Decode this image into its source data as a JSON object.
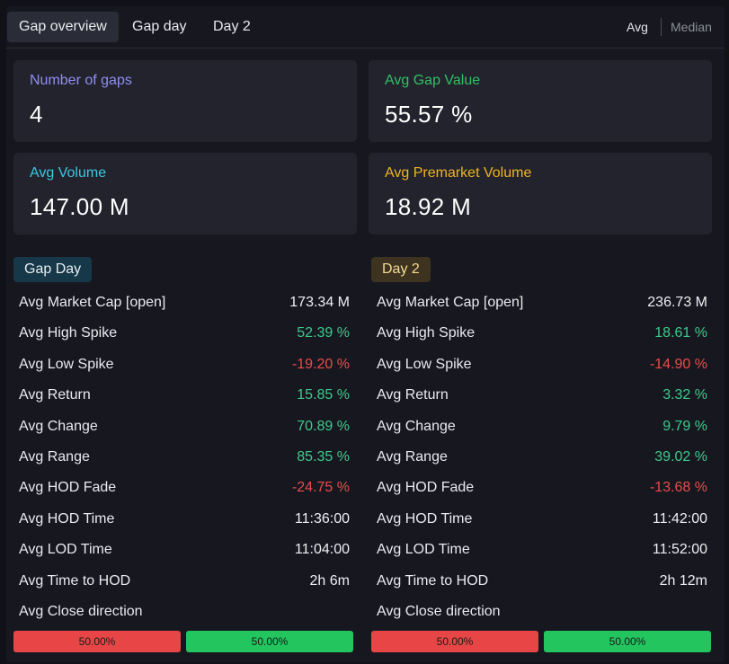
{
  "tabs": [
    {
      "label": "Gap overview",
      "active": true
    },
    {
      "label": "Gap day",
      "active": false
    },
    {
      "label": "Day 2",
      "active": false
    }
  ],
  "modes": {
    "avg": "Avg",
    "median": "Median",
    "selected": "Avg"
  },
  "cards": [
    {
      "label": "Number of gaps",
      "value": "4",
      "color": "#8f8fef"
    },
    {
      "label": "Avg Gap Value",
      "value": "55.57 %",
      "color": "#2fc262"
    },
    {
      "label": "Avg Volume",
      "value": "147.00 M",
      "color": "#3ec7de"
    },
    {
      "label": "Avg Premarket Volume",
      "value": "18.92 M",
      "color": "#f1b41f"
    }
  ],
  "gap_day": {
    "title": "Gap Day",
    "rows": [
      {
        "label": "Avg Market Cap [open]",
        "value": "173.34 M",
        "tone": "neutral"
      },
      {
        "label": "Avg High Spike",
        "value": "52.39 %",
        "tone": "pos"
      },
      {
        "label": "Avg Low Spike",
        "value": "-19.20 %",
        "tone": "neg"
      },
      {
        "label": "Avg Return",
        "value": "15.85 %",
        "tone": "pos"
      },
      {
        "label": "Avg Change",
        "value": "70.89 %",
        "tone": "pos"
      },
      {
        "label": "Avg Range",
        "value": "85.35 %",
        "tone": "pos"
      },
      {
        "label": "Avg HOD Fade",
        "value": "-24.75 %",
        "tone": "neg"
      },
      {
        "label": "Avg HOD Time",
        "value": "11:36:00",
        "tone": "neutral"
      },
      {
        "label": "Avg LOD Time",
        "value": "11:04:00",
        "tone": "neutral"
      },
      {
        "label": "Avg Time to HOD",
        "value": "2h 6m",
        "tone": "neutral"
      },
      {
        "label": "Avg Close direction",
        "value": "",
        "tone": "neutral"
      }
    ],
    "close_down": "50.00%",
    "close_up": "50.00%"
  },
  "day2": {
    "title": "Day 2",
    "rows": [
      {
        "label": "Avg Market Cap [open]",
        "value": "236.73 M",
        "tone": "neutral"
      },
      {
        "label": "Avg High Spike",
        "value": "18.61 %",
        "tone": "pos"
      },
      {
        "label": "Avg Low Spike",
        "value": "-14.90 %",
        "tone": "neg"
      },
      {
        "label": "Avg Return",
        "value": "3.32 %",
        "tone": "pos"
      },
      {
        "label": "Avg Change",
        "value": "9.79 %",
        "tone": "pos"
      },
      {
        "label": "Avg Range",
        "value": "39.02 %",
        "tone": "pos"
      },
      {
        "label": "Avg HOD Fade",
        "value": "-13.68 %",
        "tone": "neg"
      },
      {
        "label": "Avg HOD Time",
        "value": "11:42:00",
        "tone": "neutral"
      },
      {
        "label": "Avg LOD Time",
        "value": "11:52:00",
        "tone": "neutral"
      },
      {
        "label": "Avg Time to HOD",
        "value": "2h 12m",
        "tone": "neutral"
      },
      {
        "label": "Avg Close direction",
        "value": "",
        "tone": "neutral"
      }
    ],
    "close_down": "50.00%",
    "close_up": "50.00%"
  }
}
